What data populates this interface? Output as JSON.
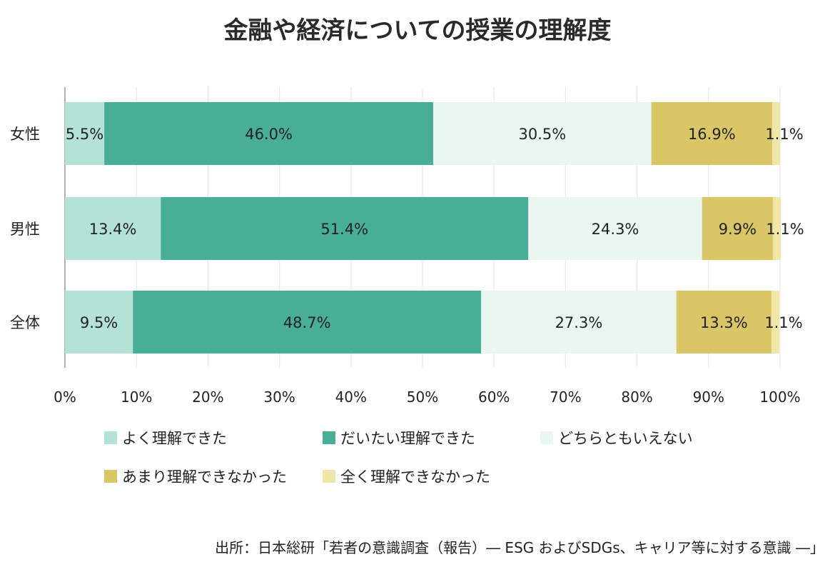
{
  "chart_data": {
    "type": "bar",
    "orientation": "horizontal",
    "stacked": "percent",
    "title": "金融や経済についての授業の理解度",
    "categories": [
      "女性",
      "男性",
      "全体"
    ],
    "series": [
      {
        "name": "よく理解できた",
        "values": [
          5.5,
          13.4,
          9.5
        ],
        "labels": [
          "5.5%",
          "13.4%",
          "9.5%"
        ],
        "color": "#b3e2d6"
      },
      {
        "name": "だいたい理解できた",
        "values": [
          46.0,
          51.4,
          48.7
        ],
        "labels": [
          "46.0%",
          "51.4%",
          "48.7%"
        ],
        "color": "#48ae95"
      },
      {
        "name": "どちらともいえない",
        "values": [
          30.5,
          24.3,
          27.3
        ],
        "labels": [
          "30.5%",
          "24.3%",
          "27.3%"
        ],
        "color": "#e9f6f2"
      },
      {
        "name": "あまり理解できなかった",
        "values": [
          16.9,
          9.9,
          13.3
        ],
        "labels": [
          "16.9%",
          "9.9%",
          "13.3%"
        ],
        "color": "#dbc667"
      },
      {
        "name": "全く理解できなかった",
        "values": [
          1.1,
          1.1,
          1.1
        ],
        "labels": [
          "1.1%",
          "1.1%",
          "1.1%"
        ],
        "color": "#f0e6a8"
      }
    ],
    "xlim": [
      0,
      100
    ],
    "xticks": [
      "0%",
      "10%",
      "20%",
      "30%",
      "40%",
      "50%",
      "60%",
      "70%",
      "80%",
      "90%",
      "100%"
    ],
    "grid": true,
    "legend_position": "bottom"
  },
  "source": "出所：日本総研「若者の意識調査（報告）― ESG およびSDGs、キャリア等に対する意識 ―」"
}
